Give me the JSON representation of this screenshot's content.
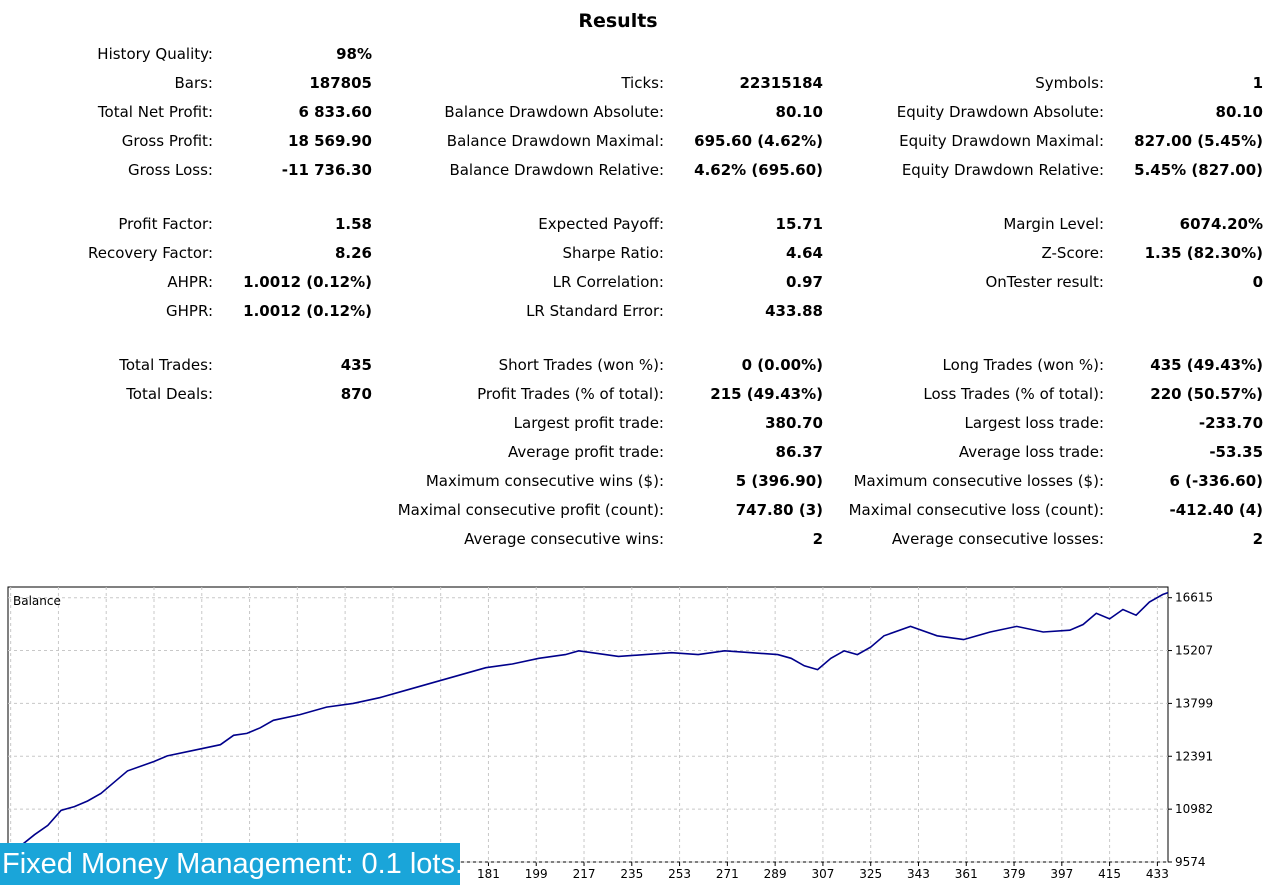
{
  "title": "Results",
  "stats": [
    {
      "key": "history_quality",
      "label": "History Quality:",
      "value": "98%",
      "col": 0,
      "row": 0
    },
    {
      "key": "bars",
      "label": "Bars:",
      "value": "187805",
      "col": 0,
      "row": 1
    },
    {
      "key": "ticks",
      "label": "Ticks:",
      "value": "22315184",
      "col": 1,
      "row": 1
    },
    {
      "key": "symbols",
      "label": "Symbols:",
      "value": "1",
      "col": 2,
      "row": 1
    },
    {
      "key": "total_net_profit",
      "label": "Total Net Profit:",
      "value": "6 833.60",
      "col": 0,
      "row": 2
    },
    {
      "key": "balance_dd_abs",
      "label": "Balance Drawdown Absolute:",
      "value": "80.10",
      "col": 1,
      "row": 2
    },
    {
      "key": "equity_dd_abs",
      "label": "Equity Drawdown Absolute:",
      "value": "80.10",
      "col": 2,
      "row": 2
    },
    {
      "key": "gross_profit",
      "label": "Gross Profit:",
      "value": "18 569.90",
      "col": 0,
      "row": 3
    },
    {
      "key": "balance_dd_max",
      "label": "Balance Drawdown Maximal:",
      "value": "695.60 (4.62%)",
      "col": 1,
      "row": 3
    },
    {
      "key": "equity_dd_max",
      "label": "Equity Drawdown Maximal:",
      "value": "827.00 (5.45%)",
      "col": 2,
      "row": 3
    },
    {
      "key": "gross_loss",
      "label": "Gross Loss:",
      "value": "-11 736.30",
      "col": 0,
      "row": 4
    },
    {
      "key": "balance_dd_rel",
      "label": "Balance Drawdown Relative:",
      "value": "4.62% (695.60)",
      "col": 1,
      "row": 4
    },
    {
      "key": "equity_dd_rel",
      "label": "Equity Drawdown Relative:",
      "value": "5.45% (827.00)",
      "col": 2,
      "row": 4
    },
    {
      "key": "profit_factor",
      "label": "Profit Factor:",
      "value": "1.58",
      "col": 0,
      "row": 6
    },
    {
      "key": "expected_payoff",
      "label": "Expected Payoff:",
      "value": "15.71",
      "col": 1,
      "row": 6
    },
    {
      "key": "margin_level",
      "label": "Margin Level:",
      "value": "6074.20%",
      "col": 2,
      "row": 6
    },
    {
      "key": "recovery_factor",
      "label": "Recovery Factor:",
      "value": "8.26",
      "col": 0,
      "row": 7
    },
    {
      "key": "sharpe_ratio",
      "label": "Sharpe Ratio:",
      "value": "4.64",
      "col": 1,
      "row": 7
    },
    {
      "key": "z_score",
      "label": "Z-Score:",
      "value": "1.35 (82.30%)",
      "col": 2,
      "row": 7
    },
    {
      "key": "ahpr",
      "label": "AHPR:",
      "value": "1.0012 (0.12%)",
      "col": 0,
      "row": 8
    },
    {
      "key": "lr_correlation",
      "label": "LR Correlation:",
      "value": "0.97",
      "col": 1,
      "row": 8
    },
    {
      "key": "ontester_result",
      "label": "OnTester result:",
      "value": "0",
      "col": 2,
      "row": 8
    },
    {
      "key": "ghpr",
      "label": "GHPR:",
      "value": "1.0012 (0.12%)",
      "col": 0,
      "row": 9
    },
    {
      "key": "lr_std_error",
      "label": "LR Standard Error:",
      "value": "433.88",
      "col": 1,
      "row": 9
    },
    {
      "key": "total_trades",
      "label": "Total Trades:",
      "value": "435",
      "col": 0,
      "row": 11
    },
    {
      "key": "short_trades",
      "label": "Short Trades (won %):",
      "value": "0 (0.00%)",
      "col": 1,
      "row": 11
    },
    {
      "key": "long_trades",
      "label": "Long Trades (won %):",
      "value": "435 (49.43%)",
      "col": 2,
      "row": 11
    },
    {
      "key": "total_deals",
      "label": "Total Deals:",
      "value": "870",
      "col": 0,
      "row": 12
    },
    {
      "key": "profit_trades",
      "label": "Profit Trades (% of total):",
      "value": "215 (49.43%)",
      "col": 1,
      "row": 12
    },
    {
      "key": "loss_trades",
      "label": "Loss Trades (% of total):",
      "value": "220 (50.57%)",
      "col": 2,
      "row": 12
    },
    {
      "key": "largest_profit_trade",
      "label": "Largest profit trade:",
      "value": "380.70",
      "col": 1,
      "row": 13
    },
    {
      "key": "largest_loss_trade",
      "label": "Largest loss trade:",
      "value": "-233.70",
      "col": 2,
      "row": 13
    },
    {
      "key": "avg_profit_trade",
      "label": "Average profit trade:",
      "value": "86.37",
      "col": 1,
      "row": 14
    },
    {
      "key": "avg_loss_trade",
      "label": "Average loss trade:",
      "value": "-53.35",
      "col": 2,
      "row": 14
    },
    {
      "key": "max_consec_wins",
      "label": "Maximum consecutive wins ($):",
      "value": "5 (396.90)",
      "col": 1,
      "row": 15
    },
    {
      "key": "max_consec_losses",
      "label": "Maximum consecutive losses ($):",
      "value": "6 (-336.60)",
      "col": 2,
      "row": 15
    },
    {
      "key": "maximal_consec_profit",
      "label": "Maximal consecutive profit (count):",
      "value": "747.80 (3)",
      "col": 1,
      "row": 16
    },
    {
      "key": "maximal_consec_loss",
      "label": "Maximal consecutive loss (count):",
      "value": "-412.40 (4)",
      "col": 2,
      "row": 16
    },
    {
      "key": "avg_consec_wins",
      "label": "Average consecutive wins:",
      "value": "2",
      "col": 1,
      "row": 17
    },
    {
      "key": "avg_consec_losses",
      "label": "Average consecutive losses:",
      "value": "2",
      "col": 2,
      "row": 17
    }
  ],
  "chart_data": {
    "type": "line",
    "title": "",
    "legend": "Balance",
    "series_color": "#00008b",
    "ylim": [
      9574,
      16900
    ],
    "xlim": [
      0,
      437
    ],
    "y_ticks": [
      16615,
      15207,
      13799,
      12391,
      10982,
      9574
    ],
    "x_ticks": [
      181,
      199,
      217,
      235,
      253,
      271,
      289,
      307,
      325,
      343,
      361,
      379,
      397,
      415,
      433
    ],
    "grid": true,
    "series": [
      {
        "x": [
          0,
          5,
          10,
          15,
          20,
          25,
          30,
          35,
          40,
          45,
          55,
          60,
          70,
          80,
          85,
          90,
          95,
          100,
          110,
          120,
          130,
          140,
          150,
          160,
          170,
          180,
          190,
          200,
          210,
          215,
          220,
          230,
          240,
          250,
          260,
          270,
          280,
          290,
          295,
          300,
          305,
          310,
          315,
          320,
          325,
          330,
          340,
          350,
          360,
          370,
          380,
          390,
          400,
          405,
          410,
          415,
          420,
          425,
          430,
          435,
          437
        ],
        "y": [
          10000,
          10020,
          10300,
          10550,
          10950,
          11050,
          11200,
          11400,
          11700,
          12000,
          12250,
          12400,
          12550,
          12700,
          12950,
          13000,
          13150,
          13350,
          13500,
          13700,
          13800,
          13950,
          14150,
          14350,
          14550,
          14750,
          14850,
          15000,
          15100,
          15200,
          15150,
          15050,
          15100,
          15150,
          15100,
          15200,
          15150,
          15100,
          15000,
          14800,
          14700,
          15000,
          15200,
          15100,
          15300,
          15600,
          15850,
          15600,
          15500,
          15700,
          15850,
          15700,
          15750,
          15900,
          16200,
          16050,
          16300,
          16150,
          16500,
          16700,
          16750
        ]
      }
    ]
  },
  "footer": {
    "banner_text": "Fixed Money Management: 0.1 lots."
  }
}
